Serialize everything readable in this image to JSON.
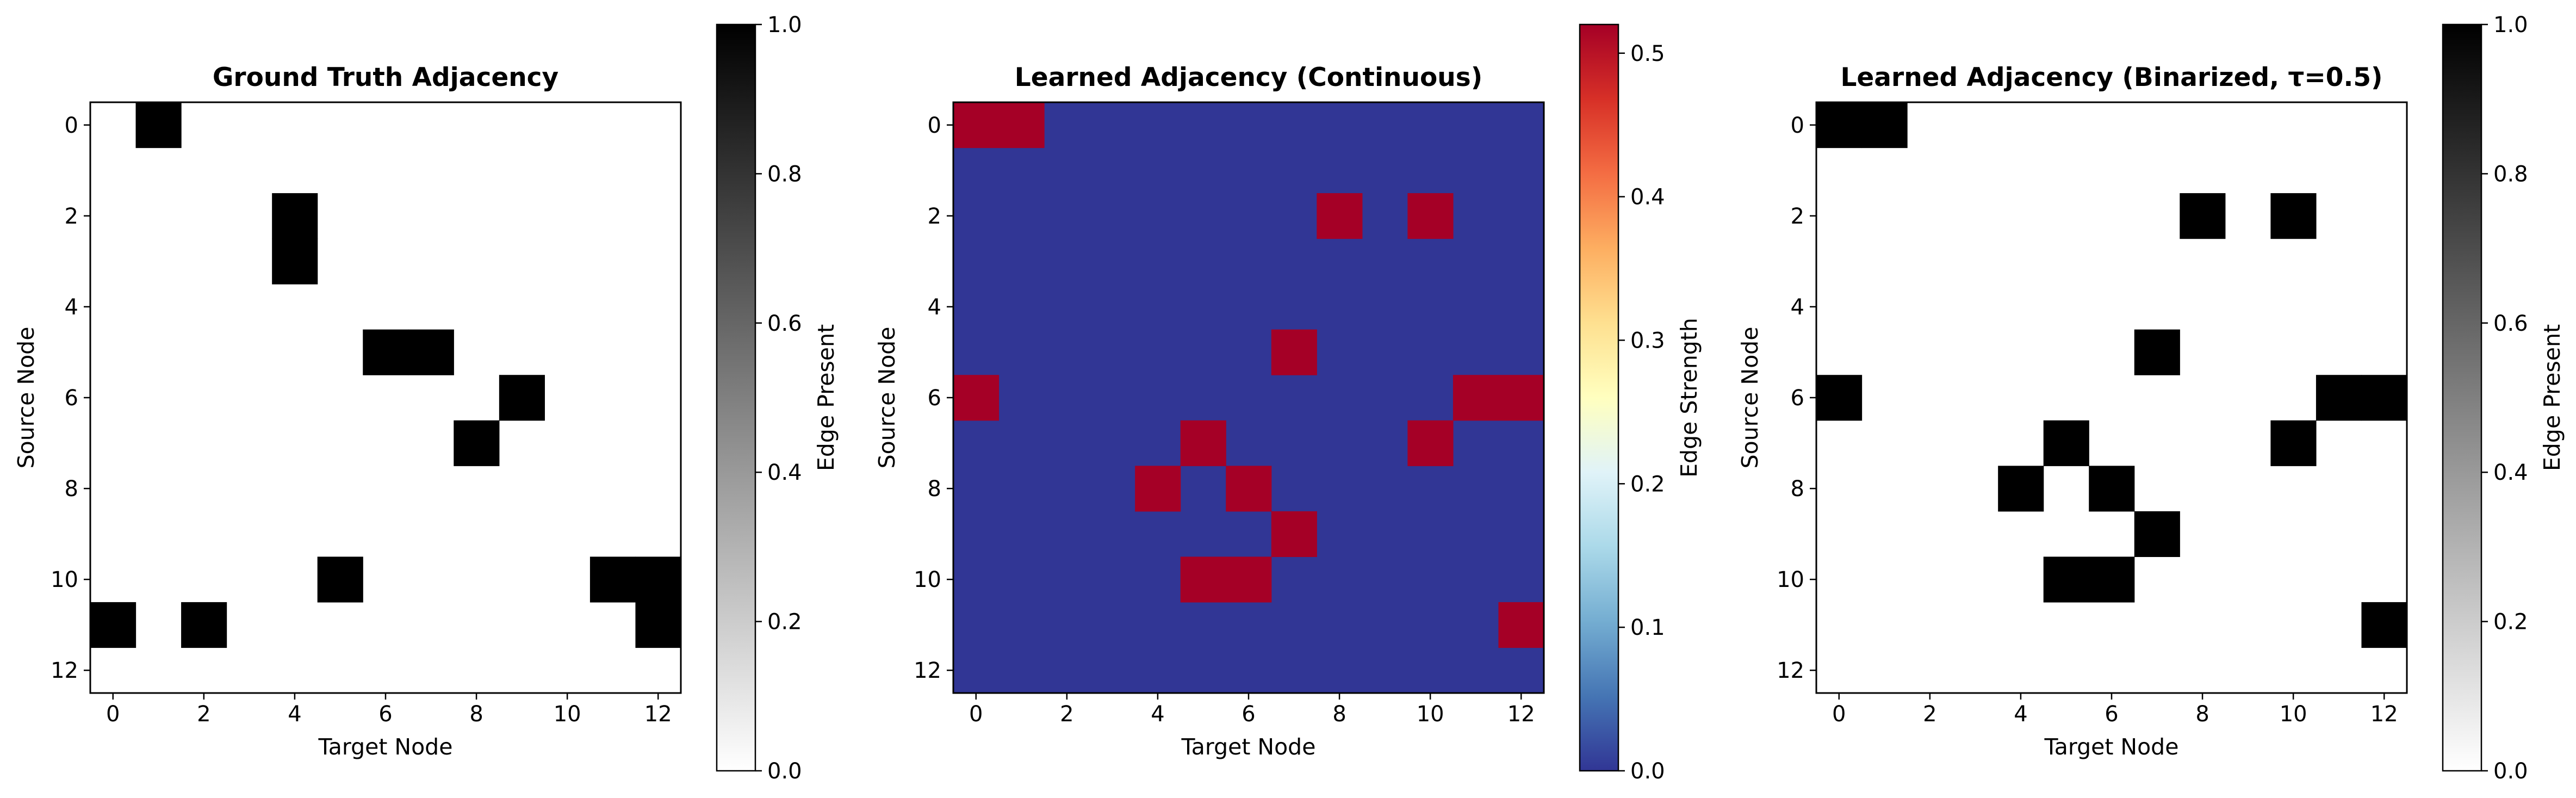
{
  "chart_data": [
    {
      "type": "heatmap",
      "title": "Ground Truth Adjacency",
      "xlabel": "Target Node",
      "ylabel": "Source Node",
      "x_ticks": [
        0,
        2,
        4,
        6,
        8,
        10,
        12
      ],
      "y_ticks": [
        0,
        2,
        4,
        6,
        8,
        10,
        12
      ],
      "n_nodes": 13,
      "colormap": "gray_r",
      "cells": [
        {
          "row": 0,
          "col": 1,
          "value": 1
        },
        {
          "row": 2,
          "col": 4,
          "value": 1
        },
        {
          "row": 3,
          "col": 4,
          "value": 1
        },
        {
          "row": 5,
          "col": 6,
          "value": 1
        },
        {
          "row": 5,
          "col": 7,
          "value": 1
        },
        {
          "row": 6,
          "col": 9,
          "value": 1
        },
        {
          "row": 7,
          "col": 8,
          "value": 1
        },
        {
          "row": 10,
          "col": 5,
          "value": 1
        },
        {
          "row": 10,
          "col": 11,
          "value": 1
        },
        {
          "row": 10,
          "col": 12,
          "value": 1
        },
        {
          "row": 11,
          "col": 0,
          "value": 1
        },
        {
          "row": 11,
          "col": 2,
          "value": 1
        },
        {
          "row": 11,
          "col": 12,
          "value": 1
        }
      ],
      "colorbar": {
        "label": "Edge Present",
        "vmin": 0.0,
        "vmax": 1.0,
        "ticks": [
          "0.0",
          "0.2",
          "0.4",
          "0.6",
          "0.8",
          "1.0"
        ]
      }
    },
    {
      "type": "heatmap",
      "title": "Learned Adjacency (Continuous)",
      "xlabel": "Target Node",
      "ylabel": "Source Node",
      "x_ticks": [
        0,
        2,
        4,
        6,
        8,
        10,
        12
      ],
      "y_ticks": [
        0,
        2,
        4,
        6,
        8,
        10,
        12
      ],
      "n_nodes": 13,
      "colormap": "RdYlBu_r",
      "cells": [
        {
          "row": 0,
          "col": 0,
          "value": 0.52
        },
        {
          "row": 0,
          "col": 1,
          "value": 0.52
        },
        {
          "row": 2,
          "col": 8,
          "value": 0.52
        },
        {
          "row": 2,
          "col": 10,
          "value": 0.52
        },
        {
          "row": 5,
          "col": 7,
          "value": 0.52
        },
        {
          "row": 6,
          "col": 0,
          "value": 0.52
        },
        {
          "row": 6,
          "col": 11,
          "value": 0.52
        },
        {
          "row": 6,
          "col": 12,
          "value": 0.52
        },
        {
          "row": 7,
          "col": 5,
          "value": 0.52
        },
        {
          "row": 7,
          "col": 10,
          "value": 0.52
        },
        {
          "row": 8,
          "col": 4,
          "value": 0.52
        },
        {
          "row": 8,
          "col": 6,
          "value": 0.52
        },
        {
          "row": 9,
          "col": 7,
          "value": 0.52
        },
        {
          "row": 10,
          "col": 5,
          "value": 0.52
        },
        {
          "row": 10,
          "col": 6,
          "value": 0.52
        },
        {
          "row": 11,
          "col": 12,
          "value": 0.52
        }
      ],
      "colorbar": {
        "label": "Edge Strength",
        "vmin": 0.0,
        "vmax": 0.52,
        "ticks": [
          "0.0",
          "0.1",
          "0.2",
          "0.3",
          "0.4",
          "0.5"
        ]
      }
    },
    {
      "type": "heatmap",
      "title": "Learned Adjacency (Binarized, τ=0.5)",
      "xlabel": "Target Node",
      "ylabel": "Source Node",
      "x_ticks": [
        0,
        2,
        4,
        6,
        8,
        10,
        12
      ],
      "y_ticks": [
        0,
        2,
        4,
        6,
        8,
        10,
        12
      ],
      "n_nodes": 13,
      "colormap": "gray_r",
      "cells": [
        {
          "row": 0,
          "col": 0,
          "value": 1
        },
        {
          "row": 0,
          "col": 1,
          "value": 1
        },
        {
          "row": 2,
          "col": 8,
          "value": 1
        },
        {
          "row": 2,
          "col": 10,
          "value": 1
        },
        {
          "row": 5,
          "col": 7,
          "value": 1
        },
        {
          "row": 6,
          "col": 0,
          "value": 1
        },
        {
          "row": 6,
          "col": 11,
          "value": 1
        },
        {
          "row": 6,
          "col": 12,
          "value": 1
        },
        {
          "row": 7,
          "col": 5,
          "value": 1
        },
        {
          "row": 7,
          "col": 10,
          "value": 1
        },
        {
          "row": 8,
          "col": 4,
          "value": 1
        },
        {
          "row": 8,
          "col": 6,
          "value": 1
        },
        {
          "row": 9,
          "col": 7,
          "value": 1
        },
        {
          "row": 10,
          "col": 5,
          "value": 1
        },
        {
          "row": 10,
          "col": 6,
          "value": 1
        },
        {
          "row": 11,
          "col": 12,
          "value": 1
        }
      ],
      "colorbar": {
        "label": "Edge Present",
        "vmin": 0.0,
        "vmax": 1.0,
        "ticks": [
          "0.0",
          "0.2",
          "0.4",
          "0.6",
          "0.8",
          "1.0"
        ]
      }
    }
  ]
}
